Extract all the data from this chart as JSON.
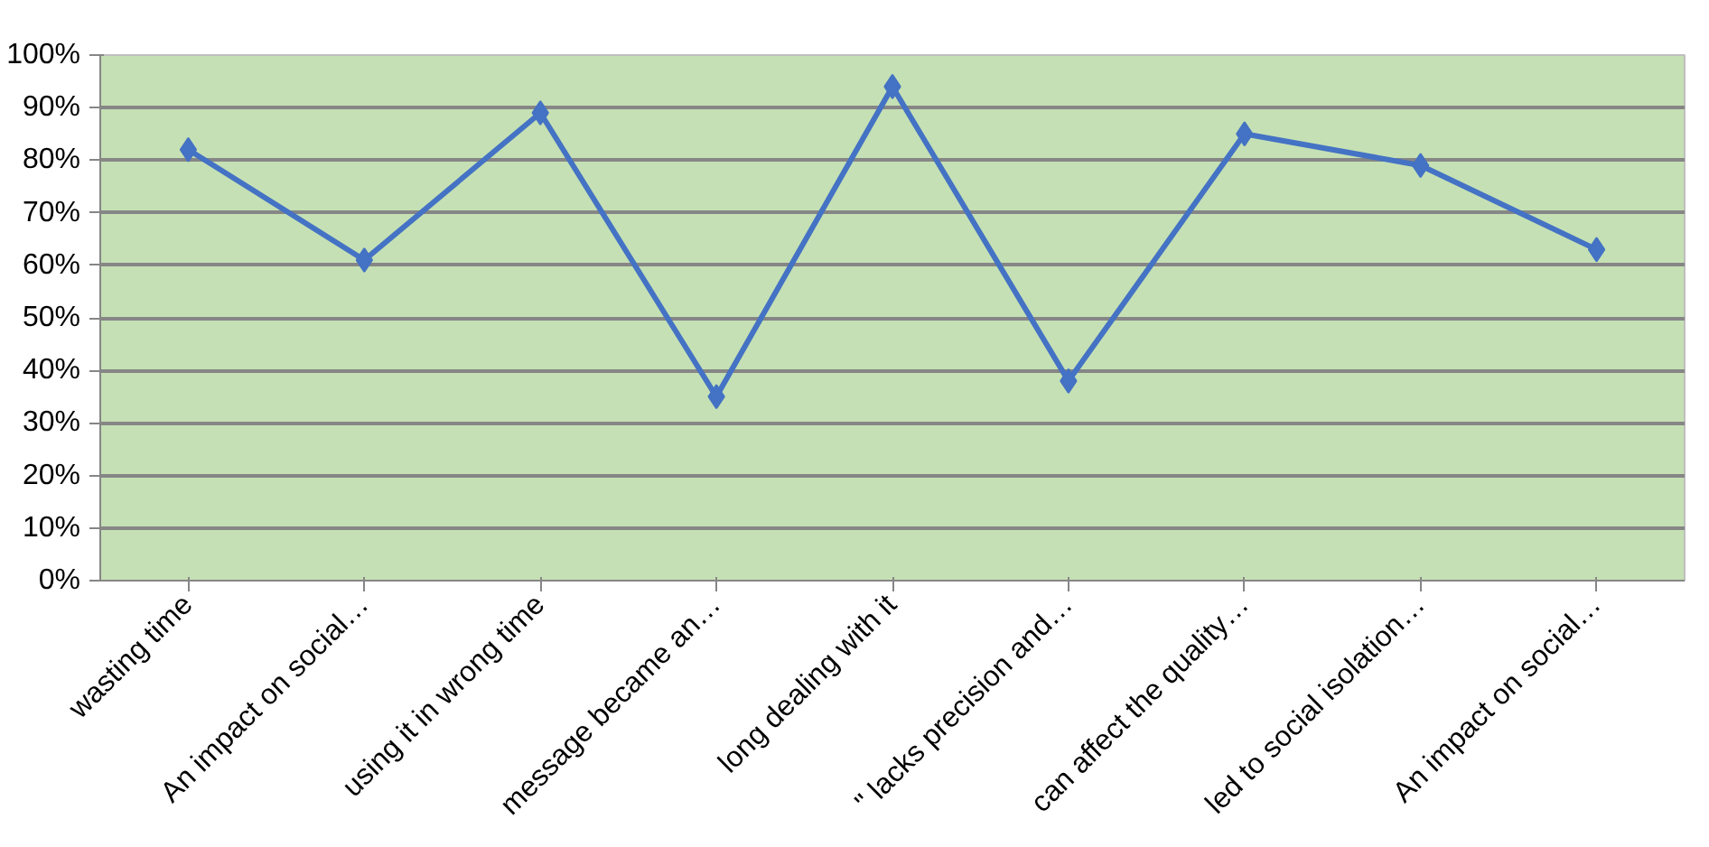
{
  "chart_data": {
    "type": "line",
    "categories": [
      "wasting time",
      "An impact on social…",
      "using it in wrong time",
      "message became an…",
      "long dealing with it",
      "\" lacks precision and…",
      "can affect the quality…",
      "led to social isolation…",
      "An impact on social…"
    ],
    "series": [
      {
        "color": "#4472c4",
        "values": [
          82,
          61,
          89,
          35,
          94,
          38,
          85,
          79,
          63
        ]
      }
    ],
    "ylim": [
      0,
      100
    ],
    "yticks": [
      {
        "value": 0,
        "label": "0%"
      },
      {
        "value": 10,
        "label": "10%"
      },
      {
        "value": 20,
        "label": "20%"
      },
      {
        "value": 30,
        "label": "30%"
      },
      {
        "value": 40,
        "label": "40%"
      },
      {
        "value": 50,
        "label": "50%"
      },
      {
        "value": 60,
        "label": "60%"
      },
      {
        "value": 70,
        "label": "70%"
      },
      {
        "value": 80,
        "label": "80%"
      },
      {
        "value": 90,
        "label": "90%"
      },
      {
        "value": 100,
        "label": "100%"
      }
    ],
    "grid": "y",
    "marker": "diamond",
    "line_style": "solid"
  }
}
